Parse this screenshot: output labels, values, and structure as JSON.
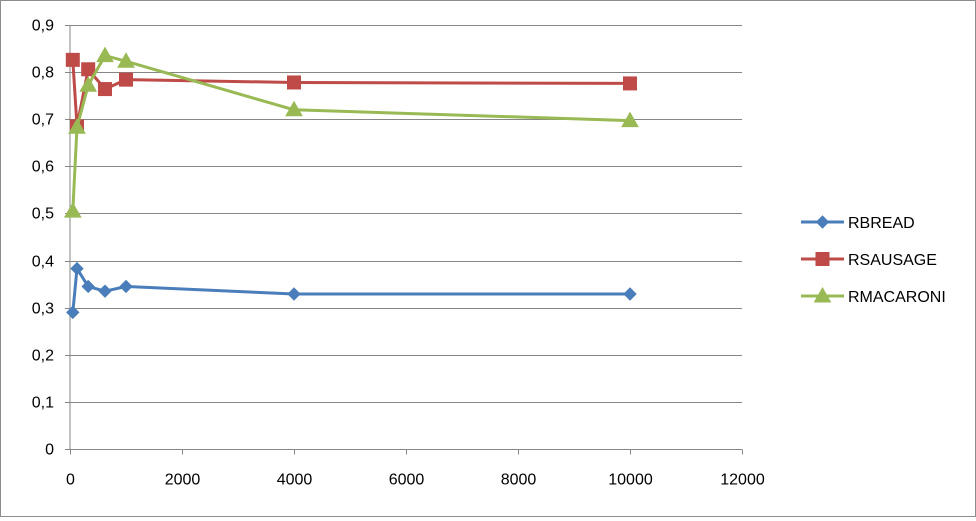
{
  "chart_data": {
    "type": "line",
    "title": "",
    "xlabel": "",
    "ylabel": "",
    "xlim": [
      0,
      12000
    ],
    "ylim": [
      0,
      0.9
    ],
    "x_ticks": [
      0,
      2000,
      4000,
      6000,
      8000,
      10000,
      12000
    ],
    "x_tick_labels": [
      "0",
      "2000",
      "4000",
      "6000",
      "8000",
      "10000",
      "12000"
    ],
    "y_ticks": [
      0,
      0.1,
      0.2,
      0.3,
      0.4,
      0.5,
      0.6,
      0.7,
      0.8,
      0.9
    ],
    "y_tick_labels": [
      "0",
      "0,1",
      "0,2",
      "0,3",
      "0,4",
      "0,5",
      "0,6",
      "0,7",
      "0,8",
      "0,9"
    ],
    "grid": "horizontal",
    "legend_position": "right",
    "series": [
      {
        "name": "RBREAD",
        "color": "#4a7ebb",
        "marker": "diamond",
        "x": [
          50,
          125,
          325,
          625,
          1000,
          4000,
          10000
        ],
        "y": [
          0.29,
          0.383,
          0.345,
          0.335,
          0.345,
          0.329,
          0.329
        ]
      },
      {
        "name": "RSAUSAGE",
        "color": "#be4b48",
        "marker": "square",
        "x": [
          50,
          125,
          325,
          625,
          1000,
          4000,
          10000
        ],
        "y": [
          0.826,
          0.685,
          0.806,
          0.764,
          0.784,
          0.778,
          0.776
        ]
      },
      {
        "name": "RMACARONI",
        "color": "#98b954",
        "marker": "triangle",
        "x": [
          50,
          125,
          325,
          625,
          1000,
          4000,
          10000
        ],
        "y": [
          0.505,
          0.683,
          0.772,
          0.835,
          0.823,
          0.72,
          0.697
        ]
      }
    ]
  }
}
